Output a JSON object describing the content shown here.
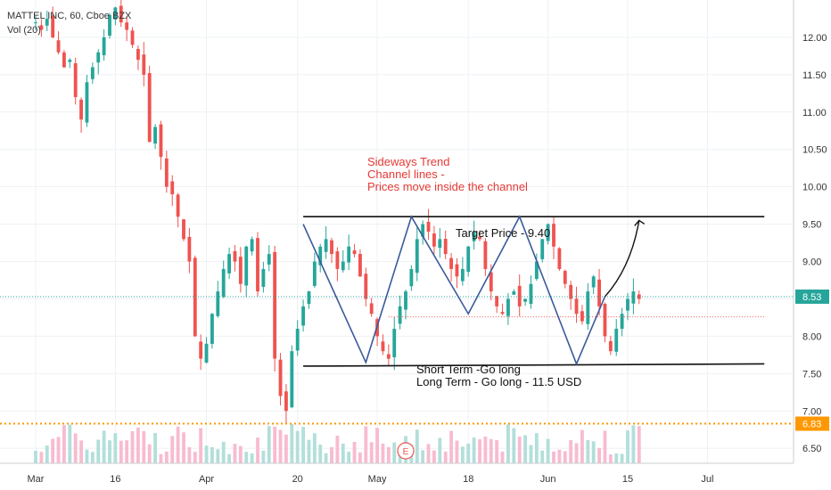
{
  "legend": {
    "symbol_line": "MATTEL INC, 60, Cboe BZX",
    "volume_line": "Vol (20)"
  },
  "colors": {
    "up": "#26a69a",
    "down": "#ef5350",
    "volume_up": "#b2dfdb",
    "volume_down": "#f8bbd0",
    "last_price": "#26a69a",
    "level_orange": "#ff9800",
    "annotation_red": "#e53935",
    "pattern_line": "#3a5a9a"
  },
  "annotations": {
    "sideways_title": "Sideways Trend",
    "sideways_line2": "Channel lines -",
    "sideways_line3": "Prices move inside the channel",
    "target": "Target Price - 9.40",
    "short_term": "Short Term -Go long",
    "long_term": "Long Term - Go long - 11.5 USD",
    "earnings_badge": "E"
  },
  "chart_data": {
    "type": "candlestick",
    "y_axis": {
      "min": 6.3,
      "max": 12.5,
      "ticks": [
        "12.00",
        "11.50",
        "11.00",
        "10.50",
        "10.00",
        "9.50",
        "9.00",
        "8.50",
        "8.00",
        "7.50",
        "7.00",
        "6.50"
      ],
      "tick_values": [
        12.0,
        11.5,
        11.0,
        10.5,
        10.0,
        9.5,
        9.0,
        8.5,
        8.0,
        7.5,
        7.0,
        6.5
      ],
      "side": "right"
    },
    "x_axis": {
      "labels": [
        "Mar",
        "16",
        "Apr",
        "20",
        "May",
        "18",
        "Jun",
        "15",
        "Jul"
      ],
      "label_index": [
        0,
        14,
        30,
        46,
        60,
        76,
        90,
        104,
        118
      ],
      "total_slots": 130
    },
    "price_labels": {
      "last": "8.53",
      "last_value": 8.53,
      "level": "6.83",
      "level_value": 6.83
    },
    "price_path": [
      [
        0,
        12.2
      ],
      [
        1,
        12.1
      ],
      [
        2,
        12.25
      ],
      [
        3,
        12.0
      ],
      [
        4,
        11.8
      ],
      [
        5,
        11.6
      ],
      [
        6,
        11.7
      ],
      [
        7,
        11.2
      ],
      [
        8,
        10.9
      ],
      [
        9,
        11.4
      ],
      [
        10,
        11.6
      ],
      [
        11,
        11.8
      ],
      [
        12,
        12.0
      ],
      [
        13,
        12.3
      ],
      [
        14,
        12.4
      ],
      [
        15,
        12.2
      ],
      [
        16,
        12.1
      ],
      [
        17,
        11.9
      ],
      [
        18,
        11.7
      ],
      [
        19,
        11.5
      ],
      [
        20,
        10.6
      ],
      [
        21,
        10.8
      ],
      [
        22,
        10.4
      ],
      [
        23,
        10.0
      ],
      [
        24,
        9.9
      ],
      [
        25,
        9.6
      ],
      [
        26,
        9.3
      ],
      [
        27,
        9.0
      ],
      [
        28,
        8.0
      ],
      [
        29,
        7.7
      ],
      [
        30,
        7.9
      ],
      [
        31,
        8.3
      ],
      [
        32,
        8.6
      ],
      [
        33,
        8.9
      ],
      [
        34,
        9.1
      ],
      [
        35,
        9.0
      ],
      [
        36,
        8.7
      ],
      [
        37,
        9.2
      ],
      [
        38,
        9.3
      ],
      [
        39,
        8.6
      ],
      [
        40,
        8.9
      ],
      [
        41,
        9.1
      ],
      [
        42,
        7.7
      ],
      [
        43,
        7.2
      ],
      [
        44,
        7.0
      ],
      [
        45,
        7.8
      ],
      [
        46,
        8.1
      ],
      [
        47,
        8.4
      ],
      [
        48,
        8.6
      ],
      [
        49,
        9.0
      ],
      [
        50,
        9.2
      ],
      [
        51,
        9.3
      ],
      [
        52,
        9.1
      ],
      [
        53,
        8.9
      ],
      [
        54,
        9.0
      ],
      [
        55,
        9.2
      ],
      [
        56,
        9.1
      ],
      [
        57,
        8.8
      ],
      [
        58,
        8.5
      ],
      [
        59,
        8.3
      ],
      [
        60,
        8.0
      ],
      [
        61,
        7.8
      ],
      [
        62,
        7.7
      ],
      [
        63,
        8.1
      ],
      [
        64,
        8.4
      ],
      [
        65,
        8.6
      ],
      [
        66,
        8.9
      ],
      [
        67,
        9.3
      ],
      [
        68,
        9.5
      ],
      [
        69,
        9.4
      ],
      [
        70,
        9.2
      ],
      [
        71,
        9.3
      ],
      [
        72,
        9.1
      ],
      [
        73,
        8.9
      ],
      [
        74,
        8.8
      ],
      [
        75,
        8.9
      ],
      [
        76,
        9.2
      ],
      [
        77,
        9.4
      ],
      [
        78,
        9.3
      ],
      [
        79,
        8.9
      ],
      [
        80,
        8.6
      ],
      [
        81,
        8.4
      ],
      [
        82,
        8.3
      ],
      [
        83,
        8.5
      ],
      [
        84,
        8.6
      ],
      [
        85,
        8.4
      ],
      [
        86,
        8.5
      ],
      [
        87,
        8.7
      ],
      [
        88,
        9.0
      ],
      [
        89,
        9.3
      ],
      [
        90,
        9.5
      ],
      [
        91,
        9.2
      ],
      [
        92,
        8.9
      ],
      [
        93,
        8.7
      ],
      [
        94,
        8.5
      ],
      [
        95,
        8.3
      ],
      [
        96,
        8.2
      ],
      [
        97,
        8.6
      ],
      [
        98,
        8.8
      ],
      [
        99,
        8.4
      ],
      [
        100,
        8.0
      ],
      [
        101,
        7.8
      ],
      [
        102,
        8.1
      ],
      [
        103,
        8.3
      ],
      [
        104,
        8.5
      ],
      [
        105,
        8.6
      ],
      [
        106,
        8.5
      ]
    ],
    "candle_count": 107,
    "channel_lines": {
      "upper": {
        "from": [
          47,
          9.6
        ],
        "to": [
          128,
          9.6
        ]
      },
      "lower": {
        "from": [
          47,
          7.6
        ],
        "to": [
          128,
          7.63
        ]
      }
    },
    "zigzag": [
      [
        47,
        9.5
      ],
      [
        58,
        7.65
      ],
      [
        66,
        9.6
      ],
      [
        76,
        8.3
      ],
      [
        85,
        9.6
      ],
      [
        95,
        7.63
      ],
      [
        100,
        8.53
      ]
    ],
    "target_arrow": {
      "from": [
        100,
        8.53
      ],
      "to": [
        106,
        9.55
      ]
    },
    "dotted_support": {
      "value": 8.26,
      "from": 62,
      "to": 128
    }
  }
}
